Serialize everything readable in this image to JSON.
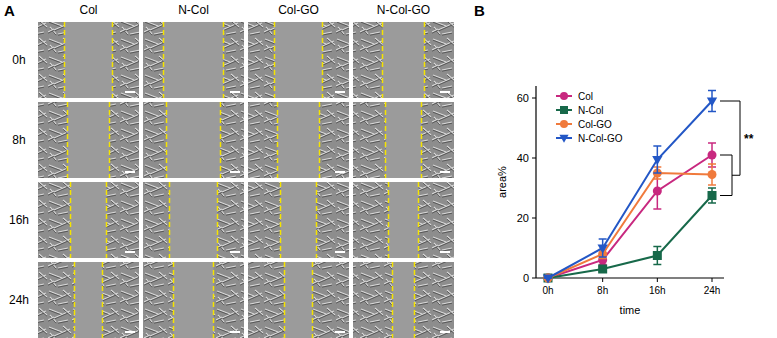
{
  "panel_labels": [
    "A",
    "B"
  ],
  "panel_a": {
    "columns": [
      "Col",
      "N-Col",
      "Col-GO",
      "N-Col-GO"
    ],
    "rows": [
      "0h",
      "8h",
      "16h",
      "24h"
    ]
  },
  "chart_data": {
    "type": "line",
    "x_label": "time",
    "y_label": "area%",
    "categories": [
      "0h",
      "8h",
      "16h",
      "24h"
    ],
    "ylim": [
      0,
      64
    ],
    "yticks": [
      0,
      20,
      40,
      60
    ],
    "legend": "top-left",
    "annotations": [
      {
        "text": "**"
      }
    ],
    "series": [
      {
        "name": "Col",
        "color": "#c8287f",
        "marker": "circle",
        "values": [
          0,
          6,
          29,
          41
        ],
        "errors": [
          0,
          1.5,
          6,
          4
        ]
      },
      {
        "name": "N-Col",
        "color": "#17694a",
        "marker": "square",
        "values": [
          0,
          3,
          7.5,
          27.5
        ],
        "errors": [
          0,
          0.8,
          3,
          2.5
        ]
      },
      {
        "name": "Col-GO",
        "color": "#f07a3c",
        "marker": "circle",
        "values": [
          0,
          8,
          35,
          34.5
        ],
        "errors": [
          0,
          1.5,
          2,
          3.5
        ]
      },
      {
        "name": "N-Col-GO",
        "color": "#2357c6",
        "marker": "triangle-down",
        "values": [
          0,
          10,
          39.5,
          59
        ],
        "errors": [
          0,
          3,
          4.5,
          3.5
        ]
      }
    ]
  }
}
